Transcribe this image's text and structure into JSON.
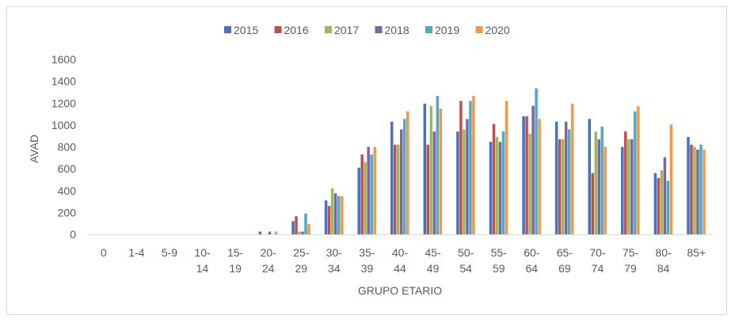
{
  "chart_data": {
    "type": "bar",
    "title": "",
    "xlabel": "GRUPO ETARIO",
    "ylabel": "AVAD",
    "ylim": [
      0,
      1600
    ],
    "yticks": [
      0,
      200,
      400,
      600,
      800,
      1000,
      1200,
      1400,
      1600
    ],
    "grid": false,
    "legend_position": "top",
    "categories": [
      [
        "0"
      ],
      [
        "1-4"
      ],
      [
        "5-9"
      ],
      [
        "10-",
        "14"
      ],
      [
        "15-",
        "19"
      ],
      [
        "20-",
        "24"
      ],
      [
        "25-",
        "29"
      ],
      [
        "30-",
        "34"
      ],
      [
        "35-",
        "39"
      ],
      [
        "40-",
        "44"
      ],
      [
        "45-",
        "49"
      ],
      [
        "50-",
        "54"
      ],
      [
        "55-",
        "59"
      ],
      [
        "60-",
        "64"
      ],
      [
        "65-",
        "69"
      ],
      [
        "70-",
        "74"
      ],
      [
        "75-",
        "79"
      ],
      [
        "80-",
        "84"
      ],
      [
        "85+"
      ]
    ],
    "series": [
      {
        "name": "2015",
        "color": "#4472C4",
        "values": [
          0,
          0,
          0,
          0,
          0,
          25,
          120,
          310,
          610,
          1030,
          1195,
          940,
          845,
          1080,
          1030,
          1055,
          800,
          560,
          890
        ]
      },
      {
        "name": "2016",
        "color": "#C0504D",
        "values": [
          0,
          0,
          0,
          0,
          0,
          0,
          165,
          260,
          730,
          820,
          820,
          1220,
          1010,
          1080,
          870,
          560,
          940,
          515,
          820
        ]
      },
      {
        "name": "2017",
        "color": "#9BBB59",
        "values": [
          0,
          0,
          0,
          0,
          0,
          0,
          25,
          420,
          660,
          820,
          1175,
          960,
          890,
          920,
          870,
          940,
          870,
          585,
          800
        ]
      },
      {
        "name": "2018",
        "color": "#8064A2",
        "values": [
          0,
          0,
          0,
          0,
          0,
          25,
          25,
          375,
          800,
          960,
          940,
          1055,
          845,
          1175,
          1030,
          870,
          870,
          705,
          775
        ]
      },
      {
        "name": "2019",
        "color": "#4BACC6",
        "values": [
          0,
          0,
          0,
          0,
          0,
          0,
          190,
          350,
          730,
          1055,
          1265,
          1220,
          940,
          1335,
          960,
          985,
          1125,
          490,
          820
        ]
      },
      {
        "name": "2020",
        "color": "#F79646",
        "values": [
          0,
          0,
          0,
          0,
          0,
          25,
          95,
          350,
          800,
          1125,
          1150,
          1265,
          1220,
          1055,
          1195,
          800,
          1170,
          1005,
          775
        ]
      }
    ]
  }
}
